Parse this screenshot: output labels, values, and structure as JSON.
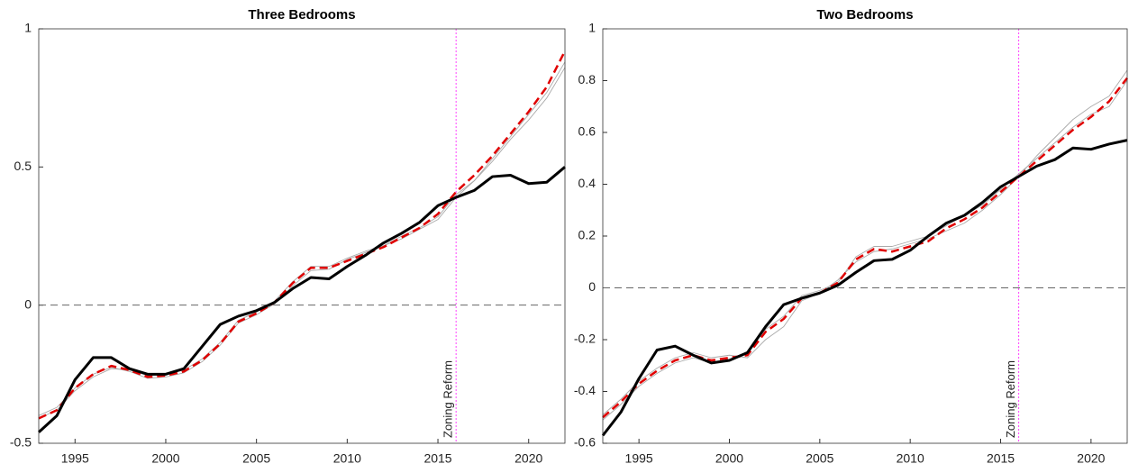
{
  "chart_data": [
    {
      "type": "line",
      "title": "Three Bedrooms",
      "x": [
        1993,
        1994,
        1995,
        1996,
        1997,
        1998,
        1999,
        2000,
        2001,
        2002,
        2003,
        2004,
        2005,
        2006,
        2007,
        2008,
        2009,
        2010,
        2011,
        2012,
        2013,
        2014,
        2015,
        2016,
        2017,
        2018,
        2019,
        2020,
        2021,
        2022
      ],
      "xlim": [
        1993,
        2022
      ],
      "xticks": [
        1995,
        2000,
        2005,
        2010,
        2015,
        2020
      ],
      "ylim": [
        -0.5,
        1
      ],
      "yticks": [
        -0.5,
        0,
        0.5,
        1
      ],
      "reference_line": 0,
      "event": {
        "x": 2016,
        "label": "Zoning Reform",
        "color": "#ff44ff"
      },
      "series": [
        {
          "color": "#aaaaaa",
          "style": "solid",
          "width": 0.9,
          "values": [
            -0.4,
            -0.37,
            -0.3,
            -0.25,
            -0.225,
            -0.24,
            -0.265,
            -0.26,
            -0.245,
            -0.205,
            -0.145,
            -0.065,
            -0.035,
            0.005,
            0.07,
            0.125,
            0.13,
            0.165,
            0.19,
            0.215,
            0.25,
            0.28,
            0.32,
            0.4,
            0.45,
            0.52,
            0.6,
            0.67,
            0.75,
            0.86
          ]
        },
        {
          "color": "#aaaaaa",
          "style": "solid",
          "width": 0.9,
          "values": [
            -0.41,
            -0.38,
            -0.31,
            -0.26,
            -0.23,
            -0.235,
            -0.255,
            -0.25,
            -0.235,
            -0.195,
            -0.135,
            -0.055,
            -0.025,
            0.015,
            0.085,
            0.14,
            0.14,
            0.17,
            0.195,
            0.215,
            0.24,
            0.275,
            0.31,
            0.39,
            0.45,
            0.53,
            0.61,
            0.69,
            0.77,
            0.88
          ]
        },
        {
          "color": "#e00000",
          "style": "dashed",
          "width": 2.5,
          "values": [
            -0.41,
            -0.38,
            -0.3,
            -0.25,
            -0.22,
            -0.235,
            -0.26,
            -0.255,
            -0.24,
            -0.2,
            -0.14,
            -0.06,
            -0.03,
            0.01,
            0.08,
            0.135,
            0.135,
            0.16,
            0.185,
            0.21,
            0.245,
            0.28,
            0.33,
            0.41,
            0.47,
            0.54,
            0.62,
            0.7,
            0.79,
            0.92
          ]
        },
        {
          "color": "#000000",
          "style": "solid",
          "width": 3,
          "values": [
            -0.46,
            -0.4,
            -0.27,
            -0.19,
            -0.19,
            -0.23,
            -0.25,
            -0.25,
            -0.23,
            -0.15,
            -0.07,
            -0.04,
            -0.02,
            0.01,
            0.06,
            0.1,
            0.095,
            0.14,
            0.18,
            0.225,
            0.26,
            0.3,
            0.36,
            0.39,
            0.415,
            0.465,
            0.47,
            0.44,
            0.445,
            0.5
          ]
        }
      ]
    },
    {
      "type": "line",
      "title": "Two Bedrooms",
      "x": [
        1993,
        1994,
        1995,
        1996,
        1997,
        1998,
        1999,
        2000,
        2001,
        2002,
        2003,
        2004,
        2005,
        2006,
        2007,
        2008,
        2009,
        2010,
        2011,
        2012,
        2013,
        2014,
        2015,
        2016,
        2017,
        2018,
        2019,
        2020,
        2021,
        2022
      ],
      "xlim": [
        1993,
        2022
      ],
      "xticks": [
        1995,
        2000,
        2005,
        2010,
        2015,
        2020
      ],
      "ylim": [
        -0.6,
        1
      ],
      "yticks": [
        -0.6,
        -0.4,
        -0.2,
        0,
        0.2,
        0.4,
        0.6,
        0.8,
        1
      ],
      "reference_line": 0,
      "event": {
        "x": 2016,
        "label": "Zoning Reform",
        "color": "#ff44ff"
      },
      "series": [
        {
          "color": "#aaaaaa",
          "style": "solid",
          "width": 0.9,
          "values": [
            -0.49,
            -0.43,
            -0.36,
            -0.31,
            -0.27,
            -0.25,
            -0.27,
            -0.26,
            -0.27,
            -0.2,
            -0.15,
            -0.05,
            -0.02,
            0.03,
            0.1,
            0.14,
            0.15,
            0.17,
            0.19,
            0.22,
            0.25,
            0.3,
            0.36,
            0.43,
            0.51,
            0.58,
            0.65,
            0.7,
            0.74,
            0.84
          ]
        },
        {
          "color": "#aaaaaa",
          "style": "solid",
          "width": 0.9,
          "values": [
            -0.51,
            -0.45,
            -0.38,
            -0.33,
            -0.29,
            -0.27,
            -0.29,
            -0.28,
            -0.25,
            -0.16,
            -0.11,
            -0.03,
            -0.01,
            0.02,
            0.12,
            0.16,
            0.16,
            0.18,
            0.2,
            0.24,
            0.28,
            0.32,
            0.38,
            0.44,
            0.5,
            0.56,
            0.62,
            0.67,
            0.7,
            0.8
          ]
        },
        {
          "color": "#e00000",
          "style": "dashed",
          "width": 2.5,
          "values": [
            -0.5,
            -0.44,
            -0.37,
            -0.32,
            -0.28,
            -0.26,
            -0.28,
            -0.27,
            -0.26,
            -0.17,
            -0.12,
            -0.04,
            -0.02,
            0.02,
            0.11,
            0.15,
            0.14,
            0.16,
            0.18,
            0.23,
            0.265,
            0.31,
            0.37,
            0.43,
            0.49,
            0.55,
            0.61,
            0.66,
            0.72,
            0.81
          ]
        },
        {
          "color": "#000000",
          "style": "solid",
          "width": 3,
          "values": [
            -0.57,
            -0.48,
            -0.35,
            -0.24,
            -0.225,
            -0.26,
            -0.29,
            -0.28,
            -0.25,
            -0.15,
            -0.065,
            -0.04,
            -0.02,
            0.01,
            0.06,
            0.105,
            0.11,
            0.145,
            0.2,
            0.25,
            0.28,
            0.33,
            0.39,
            0.43,
            0.47,
            0.495,
            0.54,
            0.535,
            0.555,
            0.57
          ]
        }
      ]
    }
  ]
}
